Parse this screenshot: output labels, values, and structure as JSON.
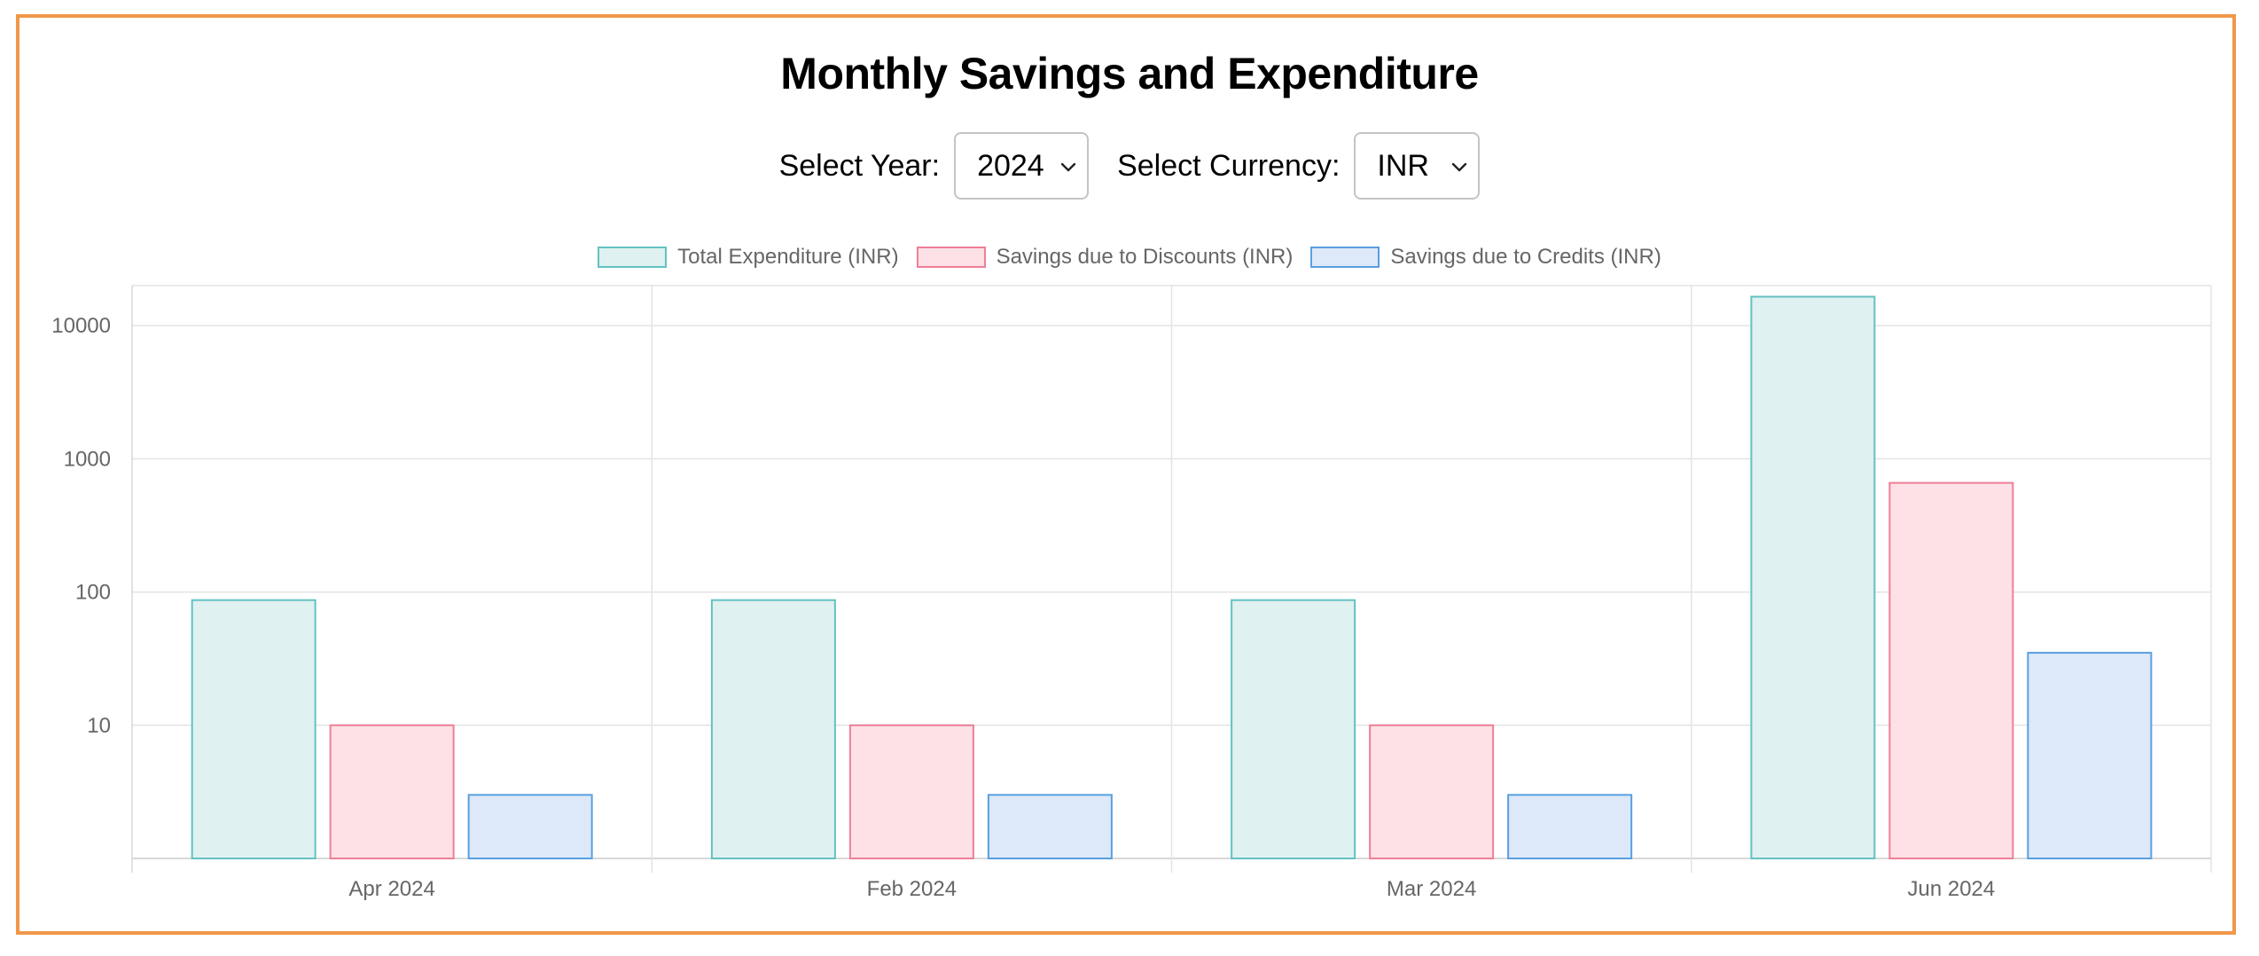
{
  "page": {
    "title": "Monthly Savings and Expenditure"
  },
  "controls": {
    "year_label": "Select Year:",
    "year_value": "2024",
    "currency_label": "Select Currency:",
    "currency_value": "INR"
  },
  "colors": {
    "frame_border": "#f0974a",
    "grid": "#e3e3e3",
    "tick_text": "#666666"
  },
  "chart_data": {
    "type": "bar",
    "title": "",
    "xlabel": "",
    "ylabel": "",
    "y_scale": "log",
    "ylim": [
      1,
      20000
    ],
    "y_ticks": [
      10,
      100,
      1000,
      10000
    ],
    "grid": true,
    "legend_position": "top",
    "categories": [
      "Apr 2024",
      "Feb 2024",
      "Mar 2024",
      "Jun 2024"
    ],
    "series": [
      {
        "name": "Total Expenditure (INR)",
        "values": [
          87,
          87,
          87,
          16500
        ],
        "fill": "#dff1f0",
        "stroke": "#64c1c2"
      },
      {
        "name": "Savings due to Discounts (INR)",
        "values": [
          10,
          10,
          10,
          660
        ],
        "fill": "#fde1e6",
        "stroke": "#ee7f96"
      },
      {
        "name": "Savings due to Credits (INR)",
        "values": [
          3,
          3,
          3,
          35
        ],
        "fill": "#dde9f9",
        "stroke": "#5a9fe0"
      }
    ]
  }
}
